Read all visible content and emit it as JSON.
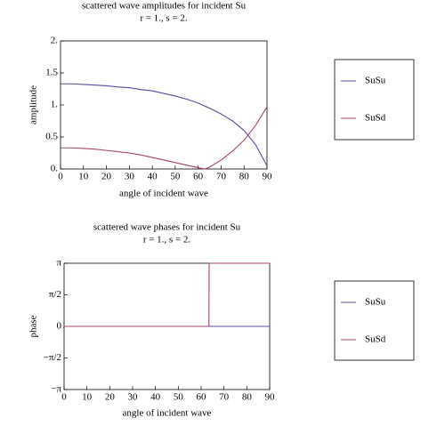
{
  "chart_data": [
    {
      "type": "line",
      "title": "scattered wave amplitudes for incident Su",
      "subtitle": "r = 1., s = 2.",
      "x_label": "angle of incident wave",
      "y_label": "amplitude",
      "x": [
        0,
        5,
        10,
        15,
        20,
        25,
        30,
        35,
        40,
        45,
        50,
        55,
        60,
        63,
        65,
        70,
        75,
        80,
        85,
        90
      ],
      "series": [
        {
          "name": "SuSu",
          "color": "#4f4fa3",
          "values": [
            1.33,
            1.33,
            1.32,
            1.31,
            1.3,
            1.28,
            1.27,
            1.24,
            1.22,
            1.18,
            1.14,
            1.09,
            1.03,
            0.98,
            0.95,
            0.86,
            0.75,
            0.6,
            0.38,
            0.05
          ]
        },
        {
          "name": "SuSd",
          "color": "#a8456e",
          "values": [
            0.33,
            0.33,
            0.32,
            0.31,
            0.29,
            0.27,
            0.25,
            0.22,
            0.18,
            0.14,
            0.1,
            0.06,
            0.02,
            0.0,
            0.03,
            0.14,
            0.28,
            0.45,
            0.68,
            0.97
          ]
        }
      ],
      "xlim": [
        0,
        90
      ],
      "xticks": [
        0,
        10,
        20,
        30,
        40,
        50,
        60,
        70,
        80,
        90
      ],
      "ylim": [
        0,
        2
      ],
      "yticks": [
        {
          "value": 0,
          "label": "0."
        },
        0.5,
        {
          "value": 1,
          "label": "1."
        },
        1.5,
        {
          "value": 2,
          "label": "2."
        }
      ]
    },
    {
      "type": "line",
      "title": "scattered wave phases for incident Su",
      "subtitle": "r = 1., s = 2.",
      "x_label": "angle of incident wave",
      "y_label": "phase",
      "x": [
        0,
        10,
        20,
        30,
        40,
        50,
        60,
        63.4,
        63.5,
        70,
        80,
        90
      ],
      "series": [
        {
          "name": "SuSu",
          "color": "#4f4fa3",
          "values": [
            0,
            0,
            0,
            0,
            0,
            0,
            0,
            0,
            0,
            0,
            0,
            0
          ]
        },
        {
          "name": "SuSd",
          "color": "#a8456e",
          "values": [
            0,
            0,
            0,
            0,
            0,
            0,
            0,
            0,
            3.14159,
            3.14159,
            3.14159,
            3.14159
          ]
        }
      ],
      "xlim": [
        0,
        90
      ],
      "xticks": [
        0,
        10,
        20,
        30,
        40,
        50,
        60,
        70,
        80,
        90
      ],
      "ylim": [
        -3.14159,
        3.14159
      ],
      "yticks": [
        {
          "value": -3.14159,
          "label": "−π"
        },
        {
          "value": -1.5708,
          "label": "−π/2"
        },
        0,
        {
          "value": 1.5708,
          "label": "π/2"
        },
        {
          "value": 3.14159,
          "label": "π"
        }
      ]
    }
  ]
}
